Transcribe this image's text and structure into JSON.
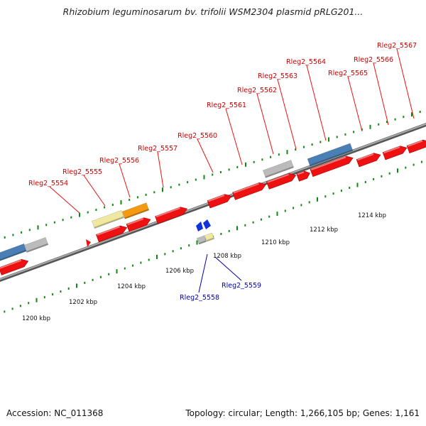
{
  "title": "Rhizobium leguminosarum bv. trifolii WSM2304 plasmid pRLG201...",
  "footer": {
    "accession": "Accession: NC_011368",
    "summary": "Topology: circular; Length: 1,266,105 bp; Genes: 1,161"
  },
  "scale_labels": [
    "1200 kbp",
    "1202 kbp",
    "1204 kbp",
    "1206 kbp",
    "1208 kbp",
    "1210 kbp",
    "1212 kbp",
    "1214 kbp"
  ],
  "forward_gene_labels": [
    "Rleg2_5554",
    "Rleg2_5555",
    "Rleg2_5556",
    "Rleg2_5557",
    "Rleg2_5560",
    "Rleg2_5561",
    "Rleg2_5562",
    "Rleg2_5563",
    "Rleg2_5564",
    "Rleg2_5565",
    "Rleg2_5566",
    "Rleg2_5567"
  ],
  "reverse_gene_labels": [
    "Rleg2_5558",
    "Rleg2_5559"
  ],
  "colors": {
    "cds": "#ee1111",
    "rna_blue": "#4a7fb5",
    "gray_feature": "#bbbbbb",
    "pale_feature": "#f0e8a0",
    "orange_feature": "#f59a10",
    "reverse_cds": "#1133dd",
    "tick": "#118811",
    "backbone": "#888888"
  }
}
